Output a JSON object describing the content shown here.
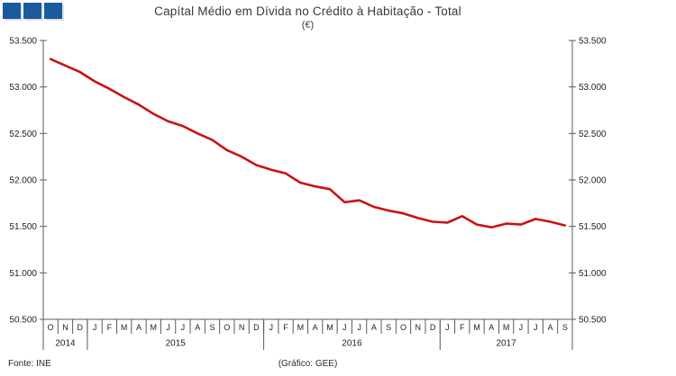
{
  "header": {
    "title": "Capítal Médio em Dívida no Crédito à Habitação - Total",
    "subtitle": "(€)",
    "logo": {
      "square_count": 3,
      "color": "#1A5B9E"
    }
  },
  "footer": {
    "source": "Fonte: INE",
    "credit": "(Gráfico: GEE)"
  },
  "chart_data": {
    "type": "line",
    "title": "Capítal Médio em Dívida no Crédito à Habitação - Total",
    "subtitle": "(€)",
    "line_color": "#CC1111",
    "axis_color": "#5a5a5a",
    "grid": false,
    "legend": "none",
    "y": {
      "min": 50500,
      "max": 53500,
      "tick_step": 500,
      "tick_labels": [
        "53.500",
        "53.000",
        "52.500",
        "52.000",
        "51.500",
        "51.000",
        "50.500"
      ],
      "axis_sides": [
        "left",
        "right"
      ]
    },
    "x": {
      "months": [
        "O",
        "N",
        "D",
        "J",
        "F",
        "M",
        "A",
        "M",
        "J",
        "J",
        "A",
        "S",
        "O",
        "N",
        "D",
        "J",
        "F",
        "M",
        "A",
        "M",
        "J",
        "J",
        "A",
        "S",
        "O",
        "N",
        "D",
        "J",
        "F",
        "M",
        "A",
        "M",
        "J",
        "J",
        "A",
        "S"
      ],
      "years": [
        {
          "label": "2014",
          "months": 3
        },
        {
          "label": "2015",
          "months": 12
        },
        {
          "label": "2016",
          "months": 12
        },
        {
          "label": "2017",
          "months": 9
        }
      ]
    },
    "values": [
      53300,
      53230,
      53160,
      53060,
      52980,
      52890,
      52810,
      52710,
      52630,
      52580,
      52500,
      52430,
      52320,
      52250,
      52160,
      52110,
      52070,
      51970,
      51930,
      51900,
      51760,
      51780,
      51710,
      51670,
      51640,
      51590,
      51550,
      51540,
      51610,
      51520,
      51490,
      51530,
      51520,
      51580,
      51550,
      51510
    ]
  }
}
